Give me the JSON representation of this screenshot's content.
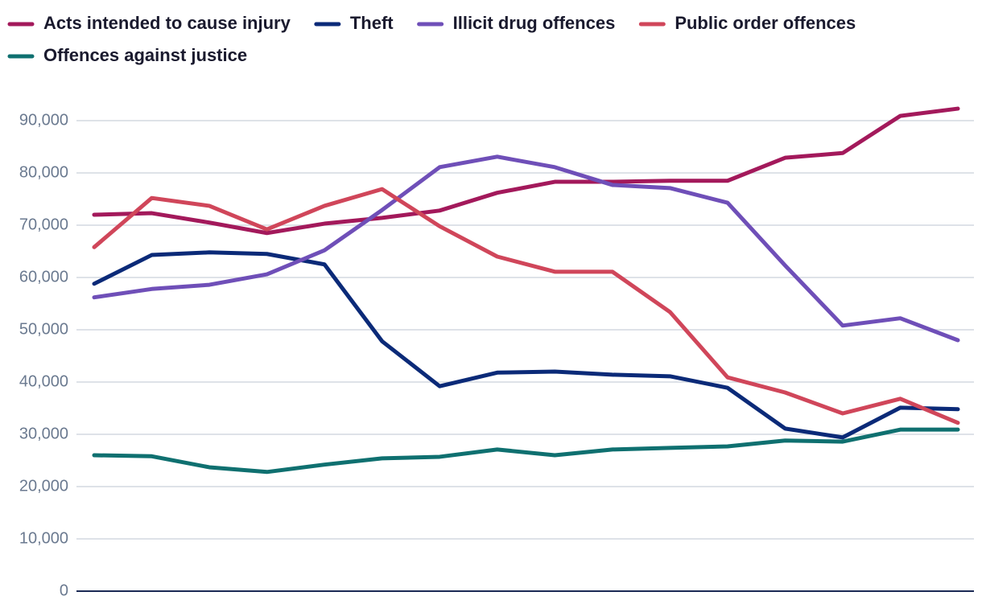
{
  "chart_data": {
    "type": "line",
    "categories": [
      null,
      null,
      null,
      null,
      null,
      null,
      null,
      null,
      null,
      null,
      null,
      null,
      null,
      null,
      null,
      null
    ],
    "series": [
      {
        "name": "Acts intended to cause injury",
        "color": "#a3195b",
        "values": [
          72000,
          72300,
          70500,
          68500,
          70300,
          71400,
          72800,
          76200,
          78300,
          78300,
          78500,
          78500,
          82900,
          83800,
          90900,
          92300
        ]
      },
      {
        "name": "Theft",
        "color": "#0b2a78",
        "values": [
          58800,
          64300,
          64800,
          64500,
          62500,
          47800,
          39200,
          41800,
          42000,
          41400,
          41100,
          38900,
          31100,
          29400,
          35100,
          34800
        ]
      },
      {
        "name": "Illicit drug offences",
        "color": "#6f4fb8",
        "values": [
          56200,
          57800,
          58600,
          60600,
          65200,
          72900,
          81100,
          83100,
          81100,
          77700,
          77100,
          74300,
          62300,
          50800,
          52200,
          48000
        ]
      },
      {
        "name": "Public order offences",
        "color": "#d0465a",
        "values": [
          65800,
          75200,
          73700,
          69200,
          73700,
          76900,
          69800,
          64000,
          61100,
          61100,
          53400,
          40900,
          38000,
          34000,
          36800,
          32200
        ]
      },
      {
        "name": "Offences against justice",
        "color": "#0f7070",
        "values": [
          26000,
          25800,
          23700,
          22800,
          24200,
          25400,
          25700,
          27100,
          26000,
          27100,
          27400,
          27700,
          28800,
          28600,
          30900,
          30900
        ]
      }
    ],
    "ylim": [
      0,
      95000
    ],
    "yticks": [
      0,
      {
        "value": 10000,
        "label": "10,000"
      },
      {
        "value": 20000,
        "label": "20,000"
      },
      {
        "value": 30000,
        "label": "30,000"
      },
      {
        "value": 40000,
        "label": "40,000"
      },
      {
        "value": 50000,
        "label": "50,000"
      },
      {
        "value": 60000,
        "label": "60,000"
      },
      {
        "value": 70000,
        "label": "70,000"
      },
      {
        "value": 80000,
        "label": "80,000"
      },
      {
        "value": 90000,
        "label": "90,000"
      }
    ],
    "grid": true,
    "legend": "top"
  }
}
